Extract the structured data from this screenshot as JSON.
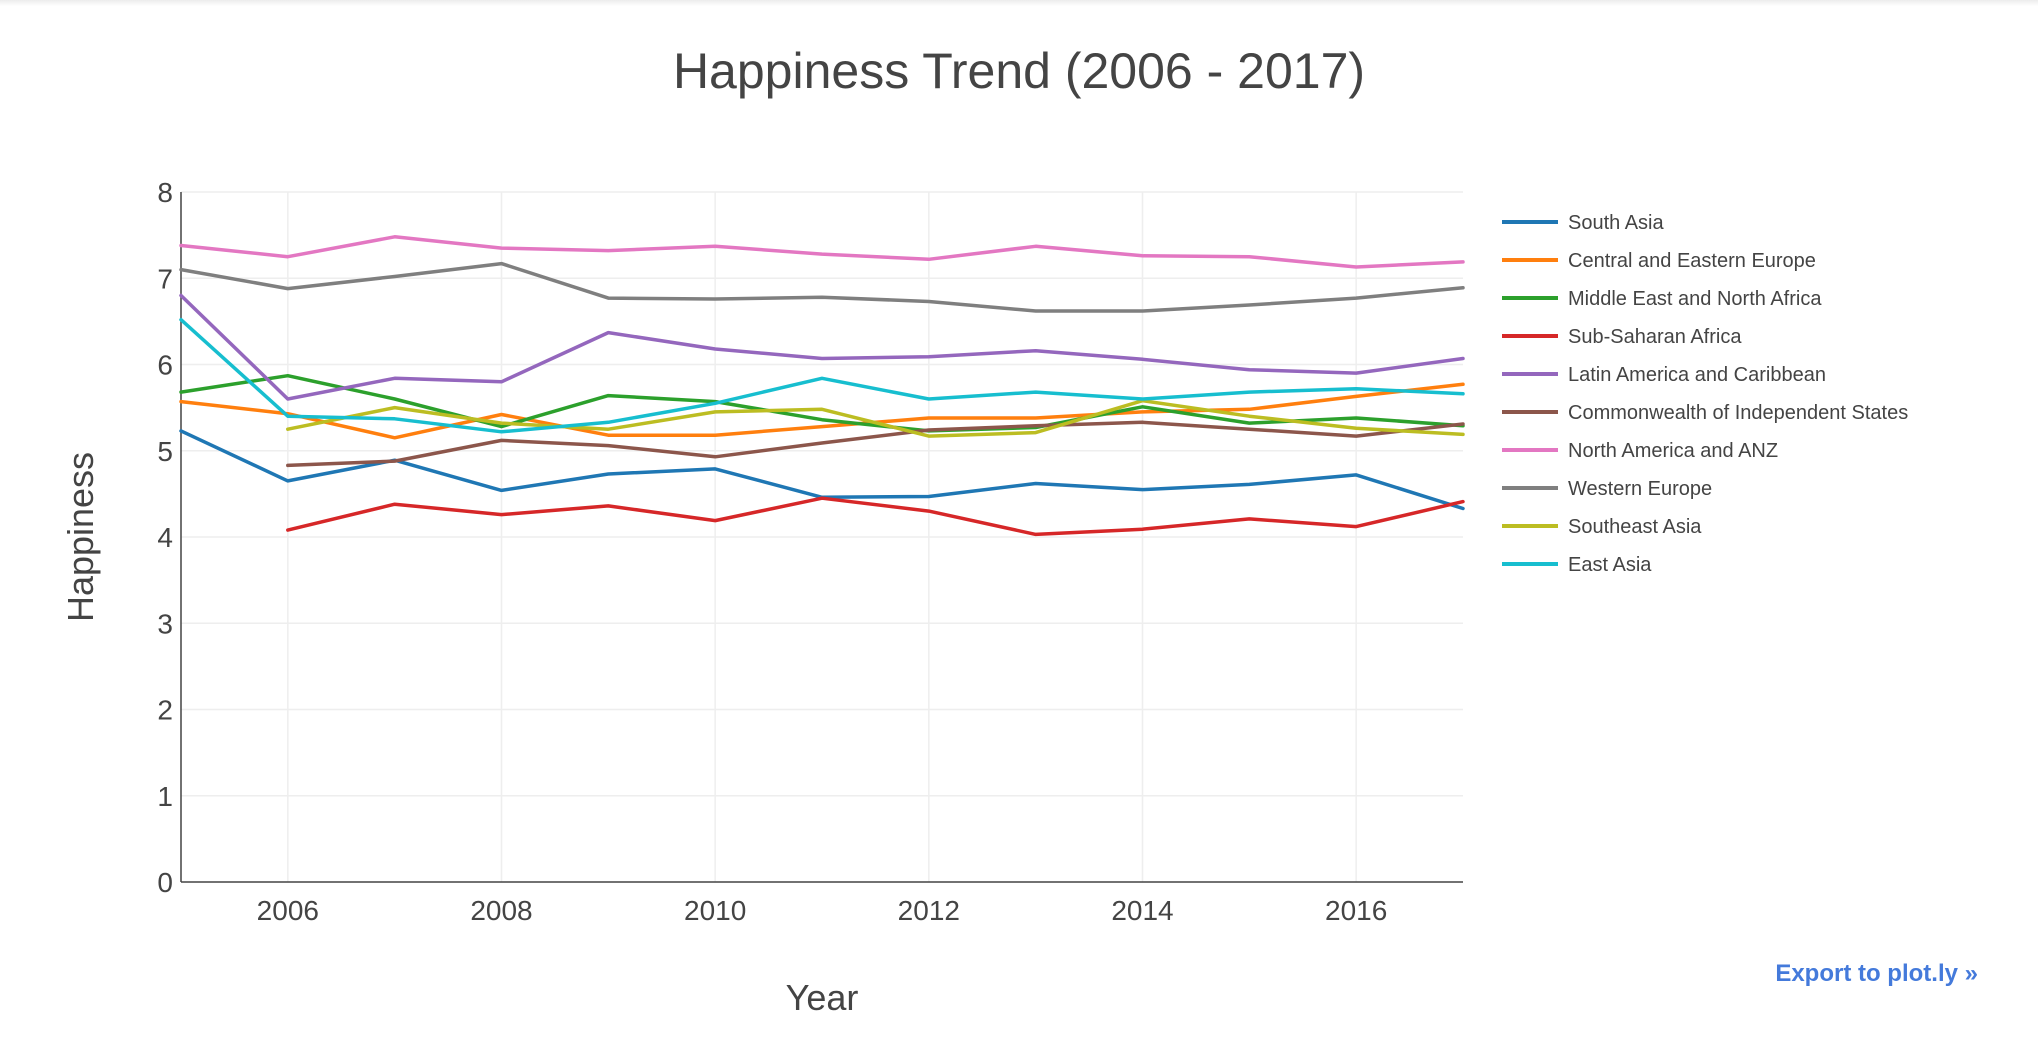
{
  "export_link": "Export to plot.ly »",
  "colors": {
    "text": "#444444",
    "grid": "#eeeeee",
    "link": "#447adb"
  },
  "chart_data": {
    "type": "line",
    "title": "Happiness Trend (2006 - 2017)",
    "xlabel": "Year",
    "ylabel": "Happiness",
    "xlim": [
      2005,
      2017
    ],
    "ylim": [
      0,
      8
    ],
    "xticks": [
      2006,
      2008,
      2010,
      2012,
      2014,
      2016
    ],
    "yticks": [
      0,
      1,
      2,
      3,
      4,
      5,
      6,
      7,
      8
    ],
    "grid": true,
    "legend_position": "right",
    "x": [
      2005,
      2006,
      2007,
      2008,
      2009,
      2010,
      2011,
      2012,
      2013,
      2014,
      2015,
      2016,
      2017
    ],
    "series": [
      {
        "name": "South Asia",
        "color": "#1f77b4",
        "values": [
          5.23,
          4.65,
          4.89,
          4.54,
          4.73,
          4.79,
          4.46,
          4.47,
          4.62,
          4.55,
          4.61,
          4.72,
          4.33
        ]
      },
      {
        "name": "Central and Eastern Europe",
        "color": "#ff7f0e",
        "values": [
          5.57,
          5.43,
          5.15,
          5.42,
          5.18,
          5.18,
          5.28,
          5.38,
          5.38,
          5.45,
          5.48,
          5.63,
          5.77
        ]
      },
      {
        "name": "Middle East and North Africa",
        "color": "#2ca02c",
        "values": [
          5.68,
          5.87,
          5.6,
          5.28,
          5.64,
          5.57,
          5.36,
          5.23,
          5.27,
          5.51,
          5.32,
          5.38,
          5.29
        ]
      },
      {
        "name": "Sub-Saharan Africa",
        "color": "#d62728",
        "values": [
          null,
          4.08,
          4.38,
          4.26,
          4.36,
          4.19,
          4.45,
          4.3,
          4.03,
          4.09,
          4.21,
          4.12,
          4.41
        ]
      },
      {
        "name": "Latin America and Caribbean",
        "color": "#9467bd",
        "values": [
          6.8,
          5.6,
          5.84,
          5.8,
          6.37,
          6.18,
          6.07,
          6.09,
          6.16,
          6.06,
          5.94,
          5.9,
          6.07
        ]
      },
      {
        "name": "Commonwealth of Independent States",
        "color": "#8c564b",
        "values": [
          null,
          4.83,
          4.88,
          5.12,
          5.06,
          4.93,
          5.09,
          5.24,
          5.29,
          5.33,
          5.25,
          5.17,
          5.31
        ]
      },
      {
        "name": "North America and ANZ",
        "color": "#e377c2",
        "values": [
          7.38,
          7.25,
          7.48,
          7.35,
          7.32,
          7.37,
          7.28,
          7.22,
          7.37,
          7.26,
          7.25,
          7.13,
          7.19
        ]
      },
      {
        "name": "Western Europe",
        "color": "#7f7f7f",
        "values": [
          7.1,
          6.88,
          7.02,
          7.17,
          6.77,
          6.76,
          6.78,
          6.73,
          6.62,
          6.62,
          6.69,
          6.77,
          6.89
        ]
      },
      {
        "name": "Southeast Asia",
        "color": "#bcbd22",
        "values": [
          null,
          5.25,
          5.5,
          5.32,
          5.25,
          5.45,
          5.48,
          5.17,
          5.21,
          5.58,
          5.4,
          5.26,
          5.19
        ]
      },
      {
        "name": "East Asia",
        "color": "#17becf",
        "values": [
          6.52,
          5.4,
          5.37,
          5.22,
          5.33,
          5.55,
          5.84,
          5.6,
          5.68,
          5.6,
          5.68,
          5.72,
          5.66
        ]
      }
    ]
  }
}
